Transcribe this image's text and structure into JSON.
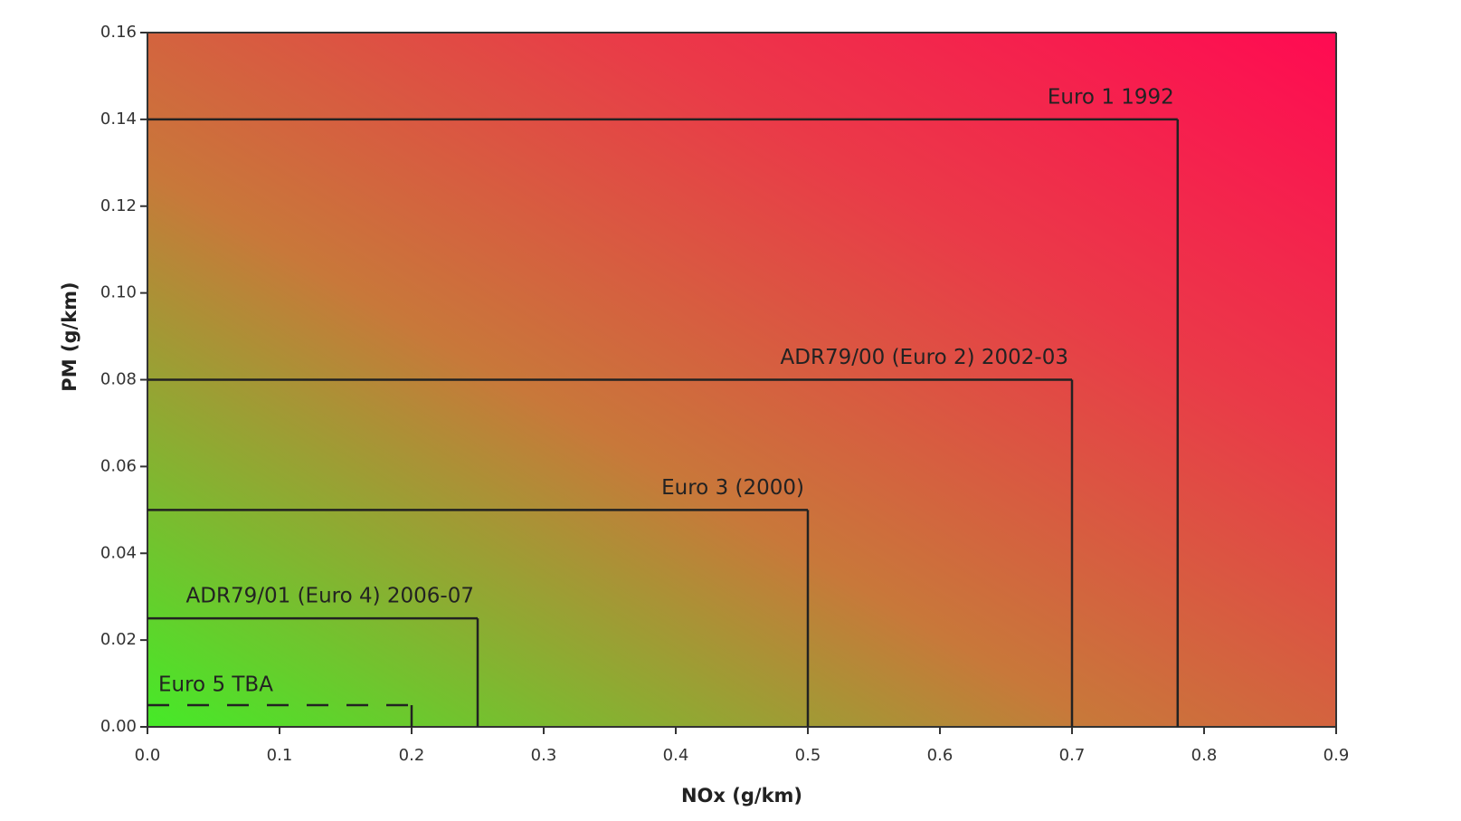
{
  "chart_data": {
    "type": "limit-box",
    "x_label": "NOx (g/km)",
    "y_label": "PM (g/km)",
    "series": [
      {
        "name": "Euro 1 1992",
        "x": 0.78,
        "y": 0.14,
        "line_style": "solid"
      },
      {
        "name": "ADR79/00 (Euro 2) 2002-03",
        "x": 0.7,
        "y": 0.08,
        "line_style": "solid"
      },
      {
        "name": "Euro 3 (2000)",
        "x": 0.5,
        "y": 0.05,
        "line_style": "solid"
      },
      {
        "name": "ADR79/01 (Euro 4) 2006-07",
        "x": 0.25,
        "y": 0.025,
        "line_style": "solid"
      },
      {
        "name": "Euro 5 TBA",
        "x": 0.2,
        "y": 0.005,
        "line_style": "dashed"
      }
    ],
    "color": "#222222",
    "xlim": [
      0,
      0.9
    ],
    "xticks": [
      {
        "value": 0,
        "label": "0.0"
      },
      0.1,
      0.2,
      0.3,
      0.4,
      0.5,
      0.6,
      0.7,
      0.8,
      0.9
    ],
    "ylim": [
      0,
      0.16
    ],
    "yticks": [
      {
        "value": 0,
        "label": "0.00"
      },
      0.02,
      0.04,
      0.06,
      0.08,
      {
        "value": 0.1,
        "label": "0.10"
      },
      0.12,
      0.14,
      0.16
    ]
  }
}
